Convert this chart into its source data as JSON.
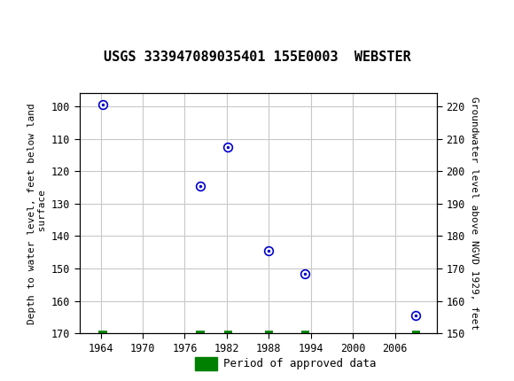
{
  "title": "USGS 333947089035401 155E0003  WEBSTER",
  "ylabel_left": "Depth to water level, feet below land\n surface",
  "ylabel_right": "Groundwater level above NGVD 1929, feet",
  "data_x": [
    1964.3,
    1978.2,
    1982.2,
    1988.0,
    1993.2,
    2009.0
  ],
  "data_y_depth": [
    99.5,
    124.5,
    112.5,
    144.5,
    151.5,
    164.5
  ],
  "green_marks_x": [
    1964.3,
    1978.2,
    1982.2,
    1988.0,
    1993.2,
    2009.0
  ],
  "xlim": [
    1961,
    2012
  ],
  "ylim_left": [
    170,
    96
  ],
  "ylim_right_bottom": 150,
  "ylim_right_top": 224,
  "xticks": [
    1964,
    1970,
    1976,
    1982,
    1988,
    1994,
    2000,
    2006
  ],
  "yticks_left": [
    100,
    110,
    120,
    130,
    140,
    150,
    160,
    170
  ],
  "yticks_right": [
    220,
    210,
    200,
    190,
    180,
    170,
    160,
    150
  ],
  "grid_color": "#c8c8c8",
  "point_color": "#0000cc",
  "green_color": "#008000",
  "background_color": "#ffffff",
  "header_color": "#1a6b3c",
  "title_fontsize": 11,
  "axis_label_fontsize": 8,
  "tick_fontsize": 8.5
}
